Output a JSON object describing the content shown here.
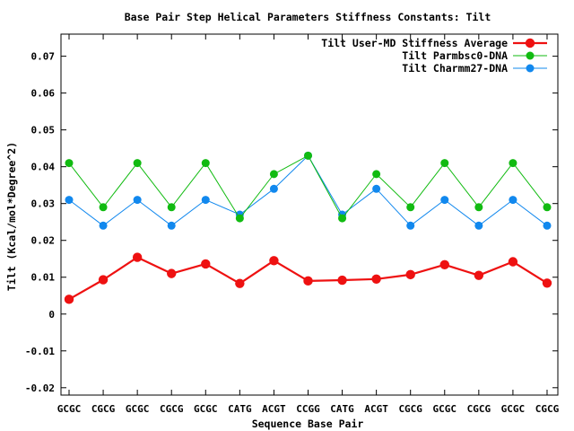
{
  "chart_data": {
    "type": "line",
    "title": "Base Pair Step Helical Parameters Stiffness Constants: Tilt",
    "xlabel": "Sequence Base Pair",
    "ylabel": "Tilt (Kcal/mol*Degree^2)",
    "categories": [
      "GCGC",
      "CGCG",
      "GCGC",
      "CGCG",
      "GCGC",
      "CATG",
      "ACGT",
      "CCGG",
      "CATG",
      "ACGT",
      "CGCG",
      "GCGC",
      "CGCG",
      "GCGC",
      "CGCG"
    ],
    "ylim": [
      -0.022,
      0.076
    ],
    "yticks": [
      -0.02,
      -0.01,
      0,
      0.01,
      0.02,
      0.03,
      0.04,
      0.05,
      0.06,
      0.07
    ],
    "ytick_labels": [
      "-0.02",
      "-0.01",
      "0",
      "0.01",
      "0.02",
      "0.03",
      "0.04",
      "0.05",
      "0.06",
      "0.07"
    ],
    "grid": false,
    "legend_position": "top-right",
    "series": [
      {
        "name": "Tilt User-MD Stiffness Average",
        "color": "#ee1111",
        "values": [
          0.004,
          0.0093,
          0.0154,
          0.011,
          0.0136,
          0.0083,
          0.0145,
          0.009,
          0.0092,
          0.0095,
          0.0107,
          0.0134,
          0.0105,
          0.0142,
          0.0084
        ]
      },
      {
        "name": "Tilt Parmbsc0-DNA",
        "color": "#11bb11",
        "values": [
          0.041,
          0.029,
          0.041,
          0.029,
          0.041,
          0.026,
          0.038,
          0.043,
          0.026,
          0.038,
          0.029,
          0.041,
          0.029,
          0.041,
          0.029
        ]
      },
      {
        "name": "Tilt Charmm27-DNA",
        "color": "#1188ee",
        "values": [
          0.031,
          0.024,
          0.031,
          0.024,
          0.031,
          0.027,
          0.034,
          0.043,
          0.027,
          0.034,
          0.024,
          0.031,
          0.024,
          0.031,
          0.024
        ]
      }
    ]
  }
}
